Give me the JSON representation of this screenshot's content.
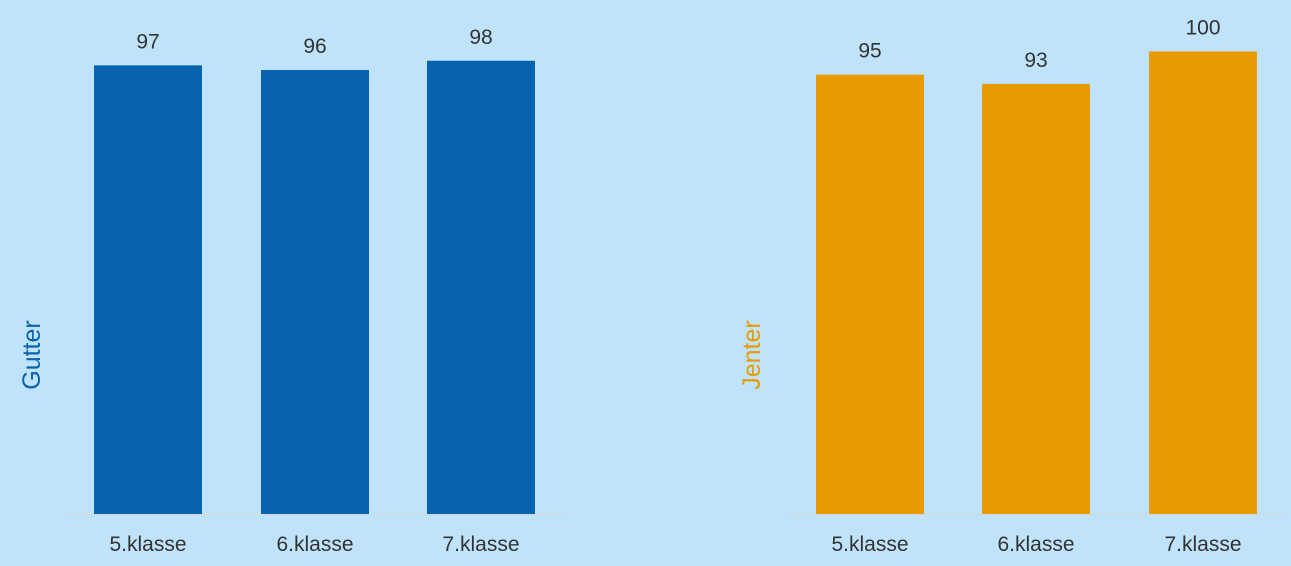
{
  "chart_data": [
    {
      "type": "bar",
      "categories": [
        "5.klasse",
        "6.klasse",
        "7.klasse"
      ],
      "series": [
        {
          "name": "Gutter",
          "values": [
            97,
            96,
            98
          ]
        }
      ],
      "xlabel": "",
      "ylabel": "Gutter",
      "ylim": [
        0,
        100
      ],
      "grid": false,
      "data_labels": true,
      "colors": {
        "bar": "#0863ae",
        "label": "#0863ae"
      }
    },
    {
      "type": "bar",
      "categories": [
        "5.klasse",
        "6.klasse",
        "7.klasse"
      ],
      "series": [
        {
          "name": "Jenter",
          "values": [
            95,
            93,
            100
          ]
        }
      ],
      "xlabel": "",
      "ylabel": "Jenter",
      "ylim": [
        0,
        100
      ],
      "grid": false,
      "data_labels": true,
      "colors": {
        "bar": "#e89a00",
        "label": "#e89a00"
      }
    }
  ],
  "colors": {
    "background": "#bfe3fb",
    "axis_line": "#d6d6d6",
    "text": "#333333"
  }
}
